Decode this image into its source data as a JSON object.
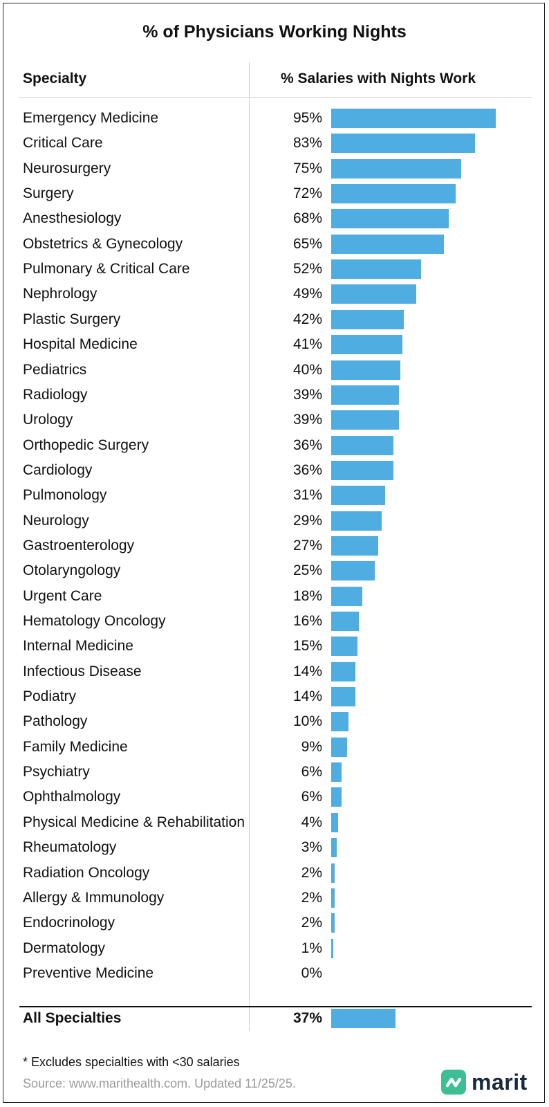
{
  "chart_data": {
    "type": "bar",
    "orientation": "horizontal",
    "title": "% of Physicians Working Nights",
    "column_headers": {
      "category": "Specialty",
      "value": "% Salaries with Nights Work"
    },
    "xlim": [
      0,
      100
    ],
    "categories": [
      "Emergency Medicine",
      "Critical Care",
      "Neurosurgery",
      "Surgery",
      "Anesthesiology",
      "Obstetrics & Gynecology",
      "Pulmonary & Critical Care",
      "Nephrology",
      "Plastic Surgery",
      "Hospital Medicine",
      "Pediatrics",
      "Radiology",
      "Urology",
      "Orthopedic Surgery",
      "Cardiology",
      "Pulmonology",
      "Neurology",
      "Gastroenterology",
      "Otolaryngology",
      "Urgent Care",
      "Hematology Oncology",
      "Internal Medicine",
      "Infectious Disease",
      "Podiatry",
      "Pathology",
      "Family Medicine",
      "Psychiatry",
      "Ophthalmology",
      "Physical Medicine & Rehabilitation",
      "Rheumatology",
      "Radiation Oncology",
      "Allergy & Immunology",
      "Endocrinology",
      "Dermatology",
      "Preventive Medicine"
    ],
    "values": [
      95,
      83,
      75,
      72,
      68,
      65,
      52,
      49,
      42,
      41,
      40,
      39,
      39,
      36,
      36,
      31,
      29,
      27,
      25,
      18,
      16,
      15,
      14,
      14,
      10,
      9,
      6,
      6,
      4,
      3,
      2,
      2,
      2,
      1,
      0
    ],
    "value_labels": [
      "95%",
      "83%",
      "75%",
      "72%",
      "68%",
      "65%",
      "52%",
      "49%",
      "42%",
      "41%",
      "40%",
      "39%",
      "39%",
      "36%",
      "36%",
      "31%",
      "29%",
      "27%",
      "25%",
      "18%",
      "16%",
      "15%",
      "14%",
      "14%",
      "10%",
      "9%",
      "6%",
      "6%",
      "4%",
      "3%",
      "2%",
      "2%",
      "2%",
      "1%",
      "0%"
    ],
    "total": {
      "label": "All Specialties",
      "value": 37,
      "value_label": "37%"
    },
    "bar_color": "#4fade2"
  },
  "footnote": "* Excludes specialties with <30 salaries",
  "source": "Source: www.marithealth.com. Updated 11/25/25.",
  "logo": {
    "text": "marit",
    "icon": "marit-logo-icon",
    "color": "#3cbf93"
  }
}
